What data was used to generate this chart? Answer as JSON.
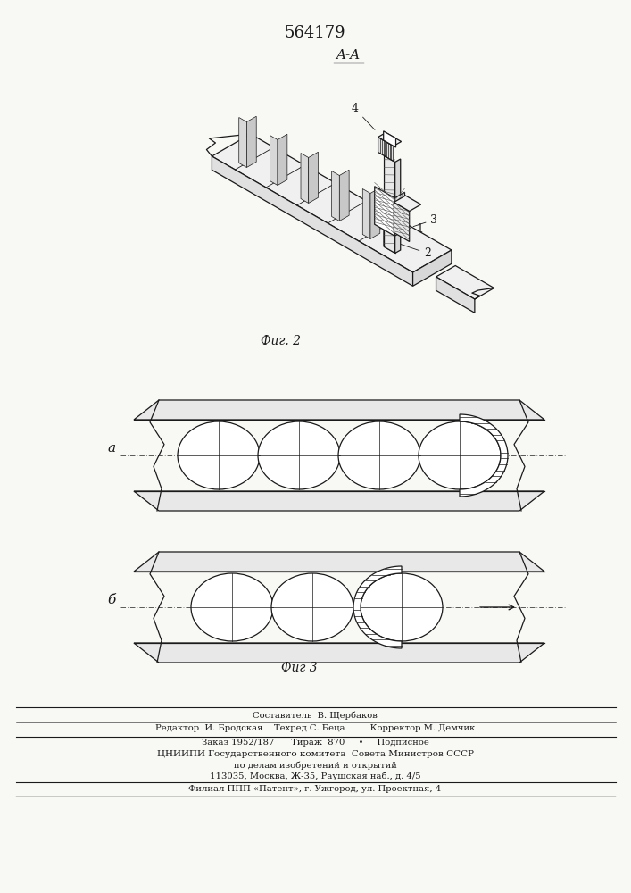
{
  "title_number": "564179",
  "section_label": "A-A",
  "fig2_label": "Фиг. 2",
  "fig3_label": "Фиг 3",
  "label_a": "а",
  "label_b": "б",
  "footer_lines": [
    "Составитель  В. Щербаков",
    "Редактор  И. Бродская    Техред С. Беца         Корректор М. Демчик",
    "Заказ 1952/187      Тираж  870     ∙     Подписное",
    "ЦНИИПИ Государственного комитета  Совета Министров СССР",
    "по делам изобретений и открытий",
    "113035, Москва, Ж-35, Раушская наб., д. 4/5",
    "Филиал ППП «Патент», г. Ужгород, ул. Проектная, 4"
  ],
  "bg_color": "#f8f8f5",
  "line_color": "#1a1a1a"
}
